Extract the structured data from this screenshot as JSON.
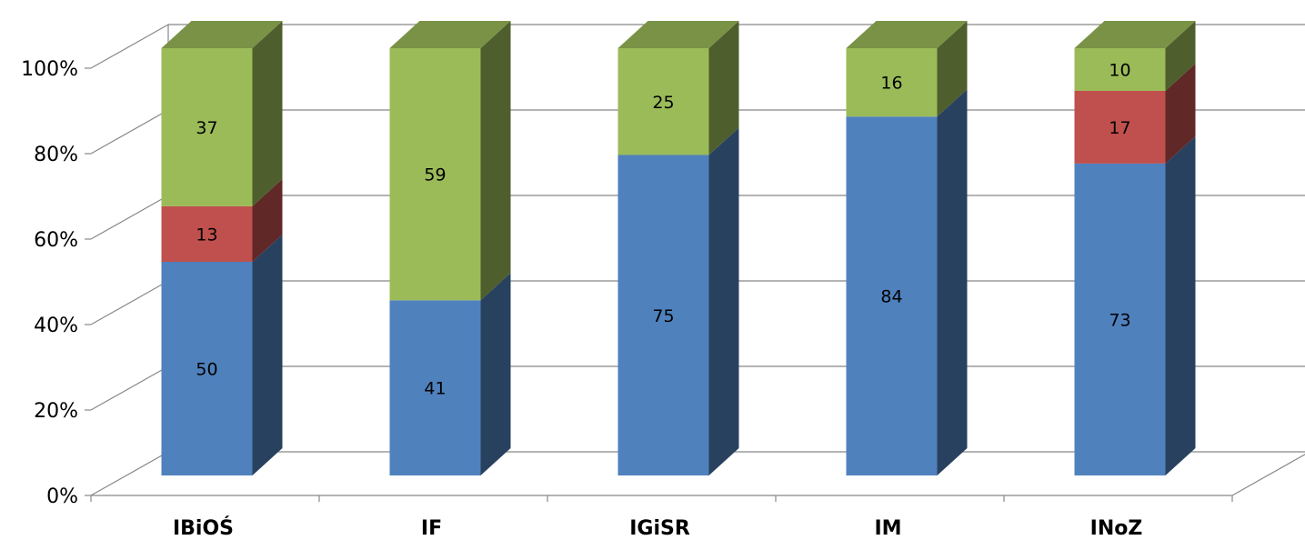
{
  "chart_data": {
    "type": "bar",
    "stacked": true,
    "percent": true,
    "three_d": true,
    "categories": [
      "IBiOŚ",
      "IF",
      "IGiSR",
      "IM",
      "INoZ"
    ],
    "series": [
      {
        "values": [
          50,
          41,
          75,
          84,
          73
        ],
        "color": "#4F81BD"
      },
      {
        "values": [
          13,
          0,
          0,
          0,
          17
        ],
        "color": "#C0504D"
      },
      {
        "values": [
          37,
          59,
          25,
          16,
          10
        ],
        "color": "#9BBB59"
      }
    ],
    "y_ticks": [
      "0%",
      "20%",
      "40%",
      "60%",
      "80%",
      "100%"
    ],
    "ylim": [
      0,
      100
    ],
    "grid": true,
    "legend": "none",
    "title": "",
    "xlabel": "",
    "ylabel": ""
  }
}
